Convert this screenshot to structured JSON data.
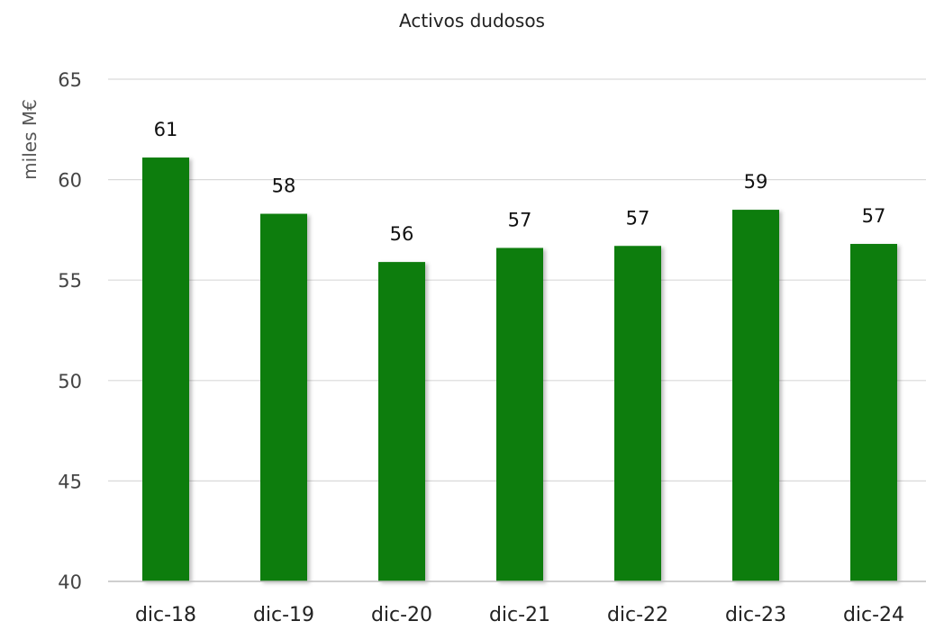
{
  "chart_data": {
    "type": "bar",
    "title": "Activos dudosos",
    "xlabel": "",
    "ylabel": "miles M€",
    "categories": [
      "dic-18",
      "dic-19",
      "dic-20",
      "dic-21",
      "dic-22",
      "dic-23",
      "dic-24"
    ],
    "values": [
      61.1,
      58.3,
      55.9,
      56.6,
      56.7,
      58.5,
      56.8
    ],
    "data_labels": [
      "61",
      "58",
      "56",
      "57",
      "57",
      "59",
      "57"
    ],
    "ylim": [
      40,
      65
    ],
    "yticks": [
      40,
      45,
      50,
      55,
      60,
      65
    ],
    "grid": true,
    "legend": "none",
    "bar_color": "#0a7d0a"
  }
}
